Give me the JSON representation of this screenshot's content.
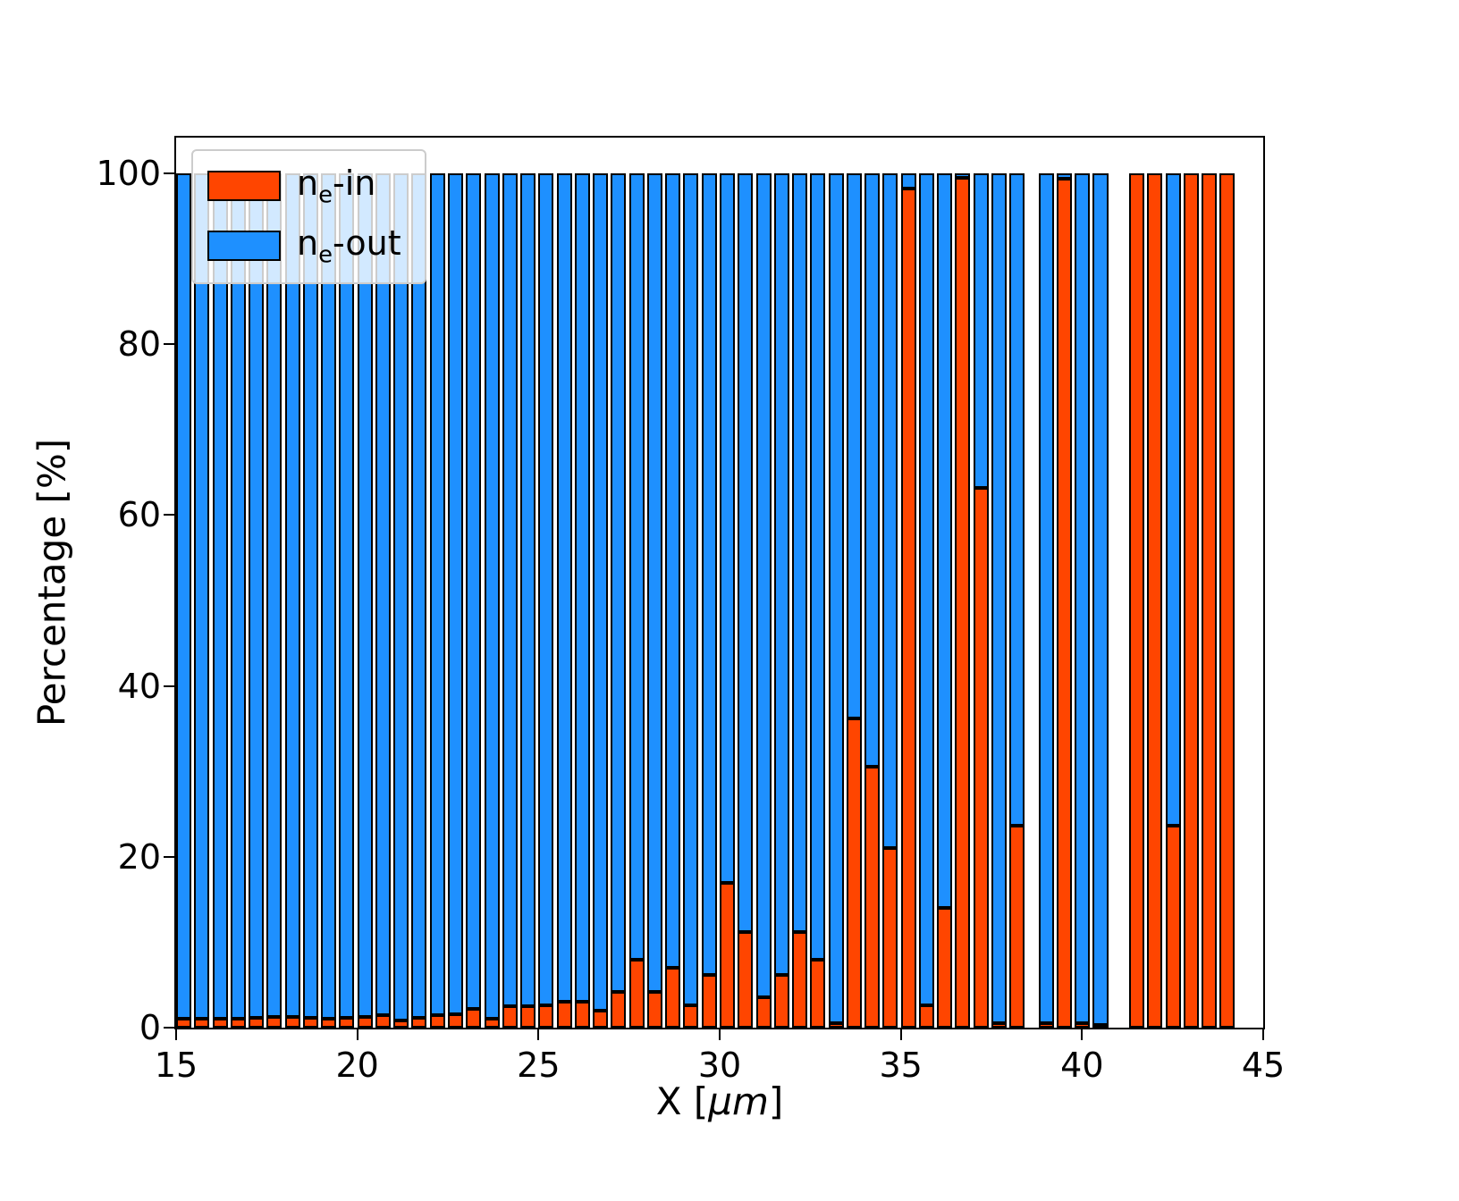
{
  "axes": {
    "xlabel": {
      "prefix": "X  [",
      "math": "μm",
      "suffix": "]"
    },
    "ylabel": "Percentage  [%]",
    "x_tick_labels": [
      "15",
      "20",
      "25",
      "30",
      "35",
      "40",
      "45"
    ],
    "y_tick_labels": [
      "0",
      "20",
      "40",
      "60",
      "80",
      "100"
    ]
  },
  "legend": {
    "entries": [
      {
        "base": "n",
        "sub": "e",
        "rest": "-in",
        "color": "#FF4500"
      },
      {
        "base": "n",
        "sub": "e",
        "rest": "-out",
        "color": "#1E90FF"
      }
    ]
  },
  "chart_data": {
    "type": "bar",
    "stacked": true,
    "title": "",
    "xlabel": "X [μm]",
    "ylabel": "Percentage [%]",
    "xlim": [
      15,
      45
    ],
    "ylim": [
      0,
      104.2
    ],
    "x_ticks": [
      15,
      20,
      25,
      30,
      35,
      40,
      45
    ],
    "y_ticks": [
      0,
      20,
      40,
      60,
      80,
      100
    ],
    "grid": false,
    "legend_position": "upper left",
    "bar_width_um": 0.42,
    "bar_edge_color": "#000000",
    "x": [
      15.0,
      15.5,
      16.0,
      16.5,
      17.0,
      17.5,
      18.0,
      18.5,
      19.0,
      19.5,
      20.0,
      20.5,
      21.0,
      21.5,
      22.0,
      22.5,
      23.0,
      23.5,
      24.0,
      24.5,
      25.0,
      25.5,
      26.0,
      26.5,
      27.0,
      27.5,
      28.0,
      28.5,
      29.0,
      29.5,
      30.0,
      30.5,
      31.0,
      31.5,
      32.0,
      32.5,
      33.0,
      33.5,
      34.0,
      34.5,
      35.0,
      35.5,
      36.0,
      36.5,
      37.0,
      37.5,
      38.0,
      38.8,
      39.3,
      39.8,
      40.3,
      41.3,
      41.8,
      42.3,
      42.8,
      43.3,
      43.8
    ],
    "series": [
      {
        "name": "ne-in",
        "color": "#FF4500",
        "values": [
          1.0,
          1.0,
          1.0,
          1.0,
          1.2,
          1.3,
          1.3,
          1.1,
          1.0,
          1.2,
          1.3,
          1.5,
          0.8,
          1.2,
          1.5,
          1.6,
          2.2,
          1.0,
          2.5,
          2.5,
          2.6,
          3.0,
          3.0,
          2.0,
          4.2,
          8.0,
          4.2,
          7.0,
          2.6,
          6.2,
          17.0,
          11.2,
          3.6,
          6.2,
          11.2,
          8.0,
          0.5,
          36.2,
          30.6,
          21.0,
          98.2,
          2.6,
          14.0,
          99.5,
          63.2,
          0.5,
          23.6,
          0.5,
          99.4,
          0.5,
          0.3,
          100,
          100,
          23.6,
          100,
          100,
          100
        ]
      },
      {
        "name": "ne-out",
        "color": "#1E90FF",
        "values": [
          99.0,
          99.0,
          99.0,
          99.0,
          98.8,
          98.7,
          98.7,
          98.9,
          99.0,
          98.8,
          98.7,
          98.5,
          99.2,
          98.8,
          98.5,
          98.4,
          97.8,
          99.0,
          97.5,
          97.5,
          97.4,
          97.0,
          97.0,
          98.0,
          95.8,
          92.0,
          95.8,
          93.0,
          97.4,
          93.8,
          83.0,
          88.8,
          96.4,
          93.8,
          88.8,
          92.0,
          99.5,
          63.8,
          69.4,
          79.0,
          1.8,
          97.4,
          86.0,
          0.5,
          36.8,
          99.5,
          76.4,
          99.5,
          0.6,
          99.5,
          99.7,
          0,
          0,
          76.4,
          0,
          0,
          0
        ]
      }
    ]
  }
}
